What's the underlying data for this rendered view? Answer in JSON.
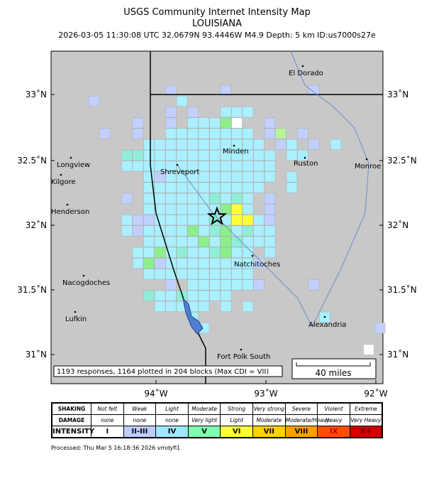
{
  "header": {
    "title": "USGS Community Internet Intensity Map",
    "region": "LOUISIANA",
    "event": "2026-03-05 11:30:08 UTC 32.0679N 93.4446W M4.9 Depth: 5 km ID:us7000s27e"
  },
  "map": {
    "lat_labels": [
      "33˚N",
      "32.5˚N",
      "32˚N",
      "31.5˚N",
      "31˚N"
    ],
    "lon_labels": [
      "94˚W",
      "93˚W",
      "92˚W"
    ],
    "places": [
      "El Dorado",
      "Longview",
      "Kilgore",
      "Henderson",
      "Shreveport",
      "Minden",
      "Ruston",
      "Monroe",
      "Natchitoches",
      "Nacogdoches",
      "Lufkin",
      "Alexandria",
      "Fort Polk South"
    ],
    "summary": "1193 responses, 1164 plotted in 204 blocks (Max CDI = VII)",
    "scale": "40 miles"
  },
  "legend": {
    "rows": [
      {
        "label": "SHAKING",
        "cells": [
          "Not felt",
          "Weak",
          "Light",
          "Moderate",
          "Strong",
          "Very strong",
          "Severe",
          "Violent",
          "Extreme"
        ]
      },
      {
        "label": "DAMAGE",
        "cells": [
          "none",
          "none",
          "none",
          "Very light",
          "Light",
          "Moderate",
          "Moderate/Heavy",
          "Heavy",
          "Very Heavy"
        ]
      },
      {
        "label": "INTENSITY",
        "cells": [
          "I",
          "II-III",
          "IV",
          "V",
          "VI",
          "VII",
          "VIII",
          "IX",
          "X+"
        ]
      }
    ]
  },
  "footer": "Processed: Thu Mar  5 16:18:36 2026 vmdyfi1"
}
